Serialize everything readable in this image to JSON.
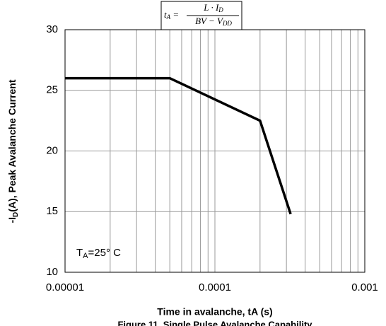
{
  "chart_data": {
    "type": "line",
    "xscale": "log",
    "grid": true,
    "xlabel": "Time in avalanche, tA (s)",
    "caption": "Figure 11. Single Pulse Avalanche Capability",
    "ylabel": [
      "-I",
      "D",
      "(A), Peak Avalanche Current"
    ],
    "annotation": [
      "T",
      "A",
      "=25° C"
    ],
    "formula": {
      "lhs": [
        "t",
        "A",
        " ="
      ],
      "numerator": [
        "L · I",
        "D"
      ],
      "denominator": [
        "BV − V",
        "DD"
      ]
    },
    "xlim": [
      1e-05,
      0.001
    ],
    "xticks": [
      1e-05,
      0.0001,
      0.001
    ],
    "ylim": [
      10,
      30
    ],
    "yticks": [
      10,
      15,
      20,
      25,
      30
    ],
    "series": [
      {
        "color": "#000000",
        "x": [
          1e-05,
          5e-05,
          0.0002,
          0.00032
        ],
        "values": [
          26,
          26,
          22.5,
          14.8
        ]
      }
    ]
  }
}
